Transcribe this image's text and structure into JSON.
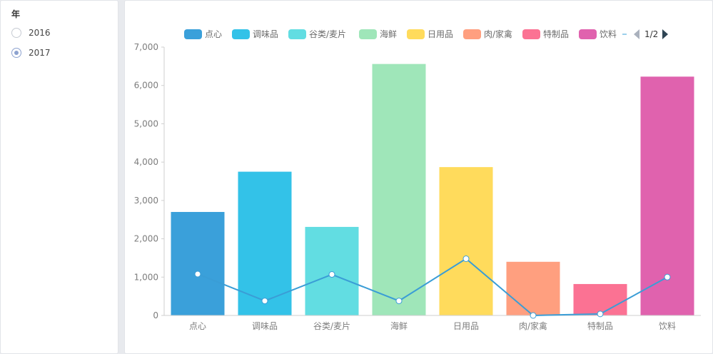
{
  "filter": {
    "title": "年",
    "options": [
      {
        "label": "2016",
        "checked": false
      },
      {
        "label": "2017",
        "checked": true
      }
    ]
  },
  "legend": {
    "page_text": "1/2"
  },
  "chart_data": {
    "type": "bar",
    "categories": [
      "点心",
      "调味品",
      "谷类/麦片",
      "海鲜",
      "日用品",
      "肉/家禽",
      "特制品",
      "饮料"
    ],
    "bar_values": [
      2700,
      3750,
      2310,
      6560,
      3870,
      1400,
      820,
      6230
    ],
    "line_values": [
      1080,
      380,
      1070,
      380,
      1480,
      0,
      40,
      1000
    ],
    "colors": [
      "#3aa0da",
      "#33c2e8",
      "#62dde2",
      "#9fe6b9",
      "#ffdb5c",
      "#ff9f7f",
      "#fb7293",
      "#e062ae"
    ],
    "line_color": "#3a9dd6",
    "ylim": [
      0,
      7000
    ],
    "yticks": [
      0,
      1000,
      2000,
      3000,
      4000,
      5000,
      6000,
      7000
    ],
    "ytick_labels": [
      "0",
      "1,000",
      "2,000",
      "3,000",
      "4,000",
      "5,000",
      "6,000",
      "7,000"
    ],
    "legend_entries": [
      "点心",
      "调味品",
      "谷类/麦片",
      "海鲜",
      "日用品",
      "肉/家禽",
      "特制品",
      "饮料"
    ],
    "grid": false,
    "legend_position": "top-center"
  }
}
